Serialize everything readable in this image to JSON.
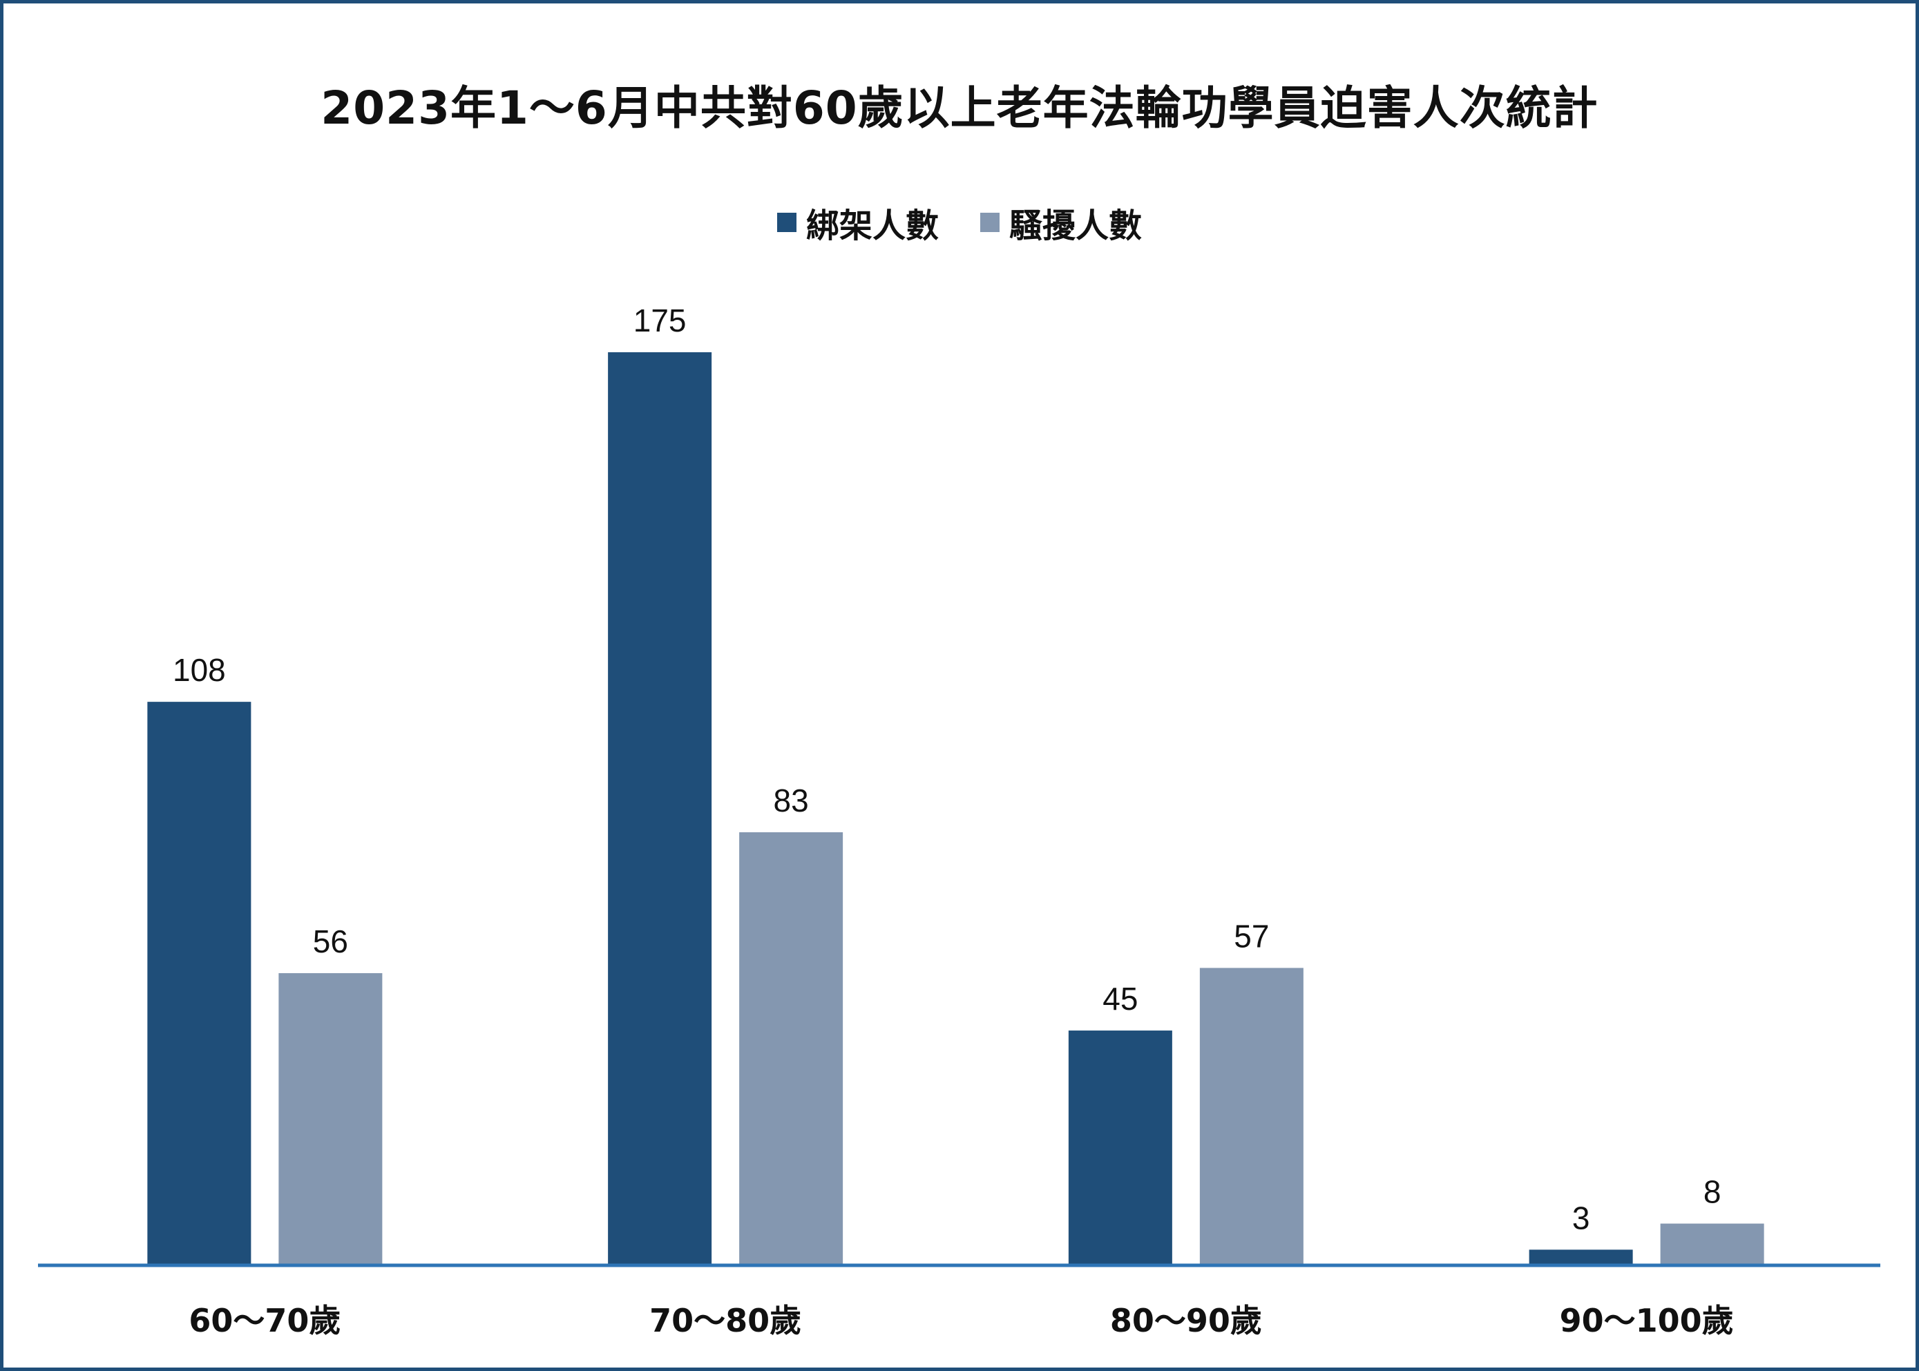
{
  "chart_data": {
    "type": "bar",
    "title": "2023年1～6月中共對60歲以上老年法輪功學員迫害人次統計",
    "categories": [
      "60～70歲",
      "70～80歲",
      "80～90歲",
      "90～100歲"
    ],
    "series": [
      {
        "name": "綁架人數",
        "values": [
          108,
          175,
          45,
          3
        ],
        "color": "#1f4e79"
      },
      {
        "name": "騷擾人數",
        "values": [
          56,
          83,
          57,
          8
        ],
        "color": "#8497b0"
      }
    ],
    "xlabel": "",
    "ylabel": "",
    "ylim": [
      0,
      175
    ],
    "grid": false,
    "legend_position": "top-center",
    "axis_color": "#2e75b6"
  }
}
